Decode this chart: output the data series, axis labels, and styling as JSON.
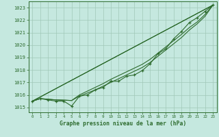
{
  "x": [
    0,
    1,
    2,
    3,
    4,
    5,
    6,
    7,
    8,
    9,
    10,
    11,
    12,
    13,
    14,
    15,
    16,
    17,
    18,
    19,
    20,
    21,
    22,
    23
  ],
  "y_main": [
    1015.5,
    1015.7,
    1015.6,
    1015.5,
    1015.5,
    1015.1,
    1015.9,
    1016.0,
    1016.4,
    1016.6,
    1017.1,
    1017.1,
    1017.5,
    1017.6,
    1017.95,
    1018.5,
    1019.3,
    1019.7,
    1020.5,
    1021.1,
    1021.8,
    1022.2,
    1022.7,
    1023.2
  ],
  "y_smooth1": [
    1015.5,
    1015.7,
    1015.65,
    1015.6,
    1015.58,
    1015.55,
    1015.9,
    1016.15,
    1016.4,
    1016.7,
    1017.0,
    1017.3,
    1017.6,
    1017.9,
    1018.2,
    1018.6,
    1019.1,
    1019.6,
    1020.1,
    1020.6,
    1021.2,
    1021.7,
    1022.3,
    1023.2
  ],
  "y_smooth2": [
    1015.5,
    1015.7,
    1015.65,
    1015.6,
    1015.58,
    1015.55,
    1016.0,
    1016.3,
    1016.6,
    1016.9,
    1017.25,
    1017.55,
    1017.85,
    1018.15,
    1018.45,
    1018.85,
    1019.35,
    1019.85,
    1020.35,
    1020.85,
    1021.4,
    1021.85,
    1022.45,
    1023.2
  ],
  "background_color": "#c5e8df",
  "grid_color": "#a0c8b8",
  "line_color": "#2d6b2d",
  "xlabel": "Graphe pression niveau de la mer (hPa)",
  "ylim": [
    1014.6,
    1023.5
  ],
  "yticks": [
    1015,
    1016,
    1017,
    1018,
    1019,
    1020,
    1021,
    1022,
    1023
  ],
  "xticks": [
    0,
    1,
    2,
    3,
    4,
    5,
    6,
    7,
    8,
    9,
    10,
    11,
    12,
    13,
    14,
    15,
    16,
    17,
    18,
    19,
    20,
    21,
    22,
    23
  ]
}
